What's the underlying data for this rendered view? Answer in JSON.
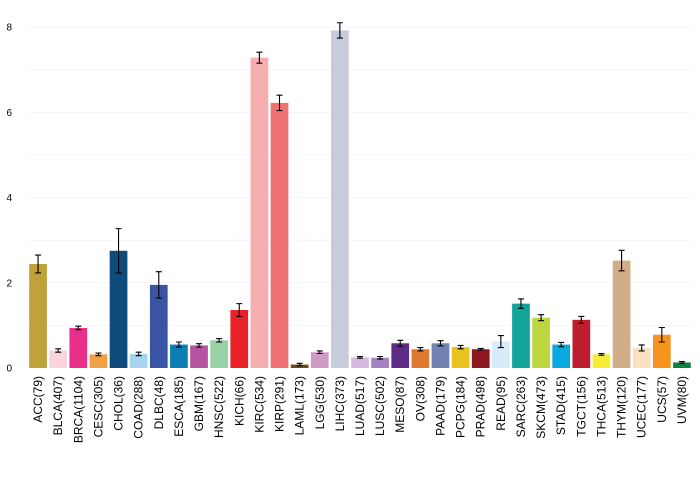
{
  "chart_data": {
    "type": "bar",
    "title": "",
    "xlabel": "",
    "ylabel": "",
    "ylim": [
      0,
      8.2
    ],
    "yticks": [
      0,
      2,
      4,
      6,
      8
    ],
    "grid": true,
    "legend": "none",
    "categories": [
      "ACC(79)",
      "BLCA(407)",
      "BRCA(1104)",
      "CESC(305)",
      "CHOL(36)",
      "COAD(288)",
      "DLBC(48)",
      "ESCA(185)",
      "GBM(167)",
      "HNSC(522)",
      "KICH(66)",
      "KIRC(534)",
      "KIRP(291)",
      "LAML(173)",
      "LGG(530)",
      "LIHC(373)",
      "LUAD(517)",
      "LUSC(502)",
      "MESO(87)",
      "OV(308)",
      "PAAD(179)",
      "PCPG(184)",
      "PRAD(498)",
      "READ(95)",
      "SARC(263)",
      "SKCM(473)",
      "STAD(415)",
      "TGCT(156)",
      "THCA(513)",
      "THYM(120)",
      "UCEC(177)",
      "UCS(57)",
      "UVM(80)"
    ],
    "values": [
      2.44,
      0.41,
      0.94,
      0.32,
      2.75,
      0.33,
      1.95,
      0.55,
      0.53,
      0.65,
      1.36,
      7.28,
      6.22,
      0.08,
      0.37,
      7.92,
      0.25,
      0.24,
      0.58,
      0.44,
      0.58,
      0.49,
      0.44,
      0.62,
      1.51,
      1.18,
      0.55,
      1.13,
      0.32,
      2.52,
      0.47,
      0.78,
      0.13
    ],
    "errors": [
      0.21,
      0.04,
      0.04,
      0.03,
      0.52,
      0.04,
      0.31,
      0.06,
      0.04,
      0.04,
      0.15,
      0.13,
      0.18,
      0.03,
      0.03,
      0.18,
      0.02,
      0.03,
      0.07,
      0.04,
      0.06,
      0.04,
      0.02,
      0.14,
      0.11,
      0.07,
      0.05,
      0.08,
      0.02,
      0.24,
      0.07,
      0.17,
      0.02
    ],
    "colors": [
      "#bfa23a",
      "#f9d3dd",
      "#e8308a",
      "#f0a145",
      "#0e4a7a",
      "#a7d5ef",
      "#3a54a4",
      "#0c7eb5",
      "#b553a0",
      "#98d1a4",
      "#e82128",
      "#f6aeb0",
      "#ef7173",
      "#6b4c1a",
      "#d09ac5",
      "#c8cbdb",
      "#d8b9dd",
      "#a383c0",
      "#5b2b86",
      "#e07930",
      "#7282b2",
      "#e8c21f",
      "#8c171c",
      "#d6ecf8",
      "#12a39a",
      "#bed640",
      "#0aa8e0",
      "#be1e2d",
      "#f7ed37",
      "#d2ad8a",
      "#f8e0c0",
      "#f7941d",
      "#0e8143"
    ]
  }
}
